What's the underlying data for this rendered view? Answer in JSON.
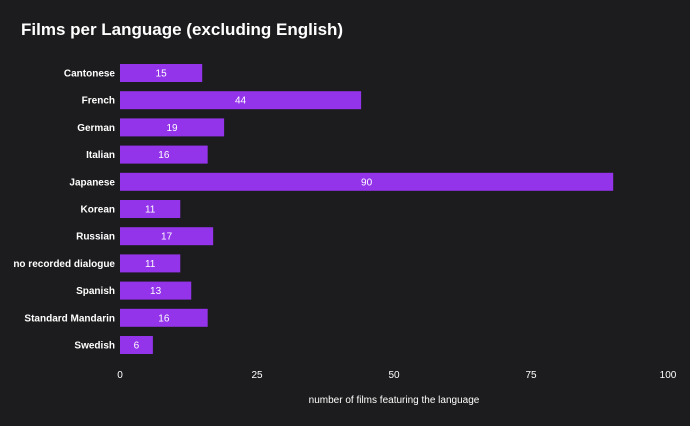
{
  "chart_data": {
    "type": "bar",
    "orientation": "horizontal",
    "title": "Films per Language (excluding English)",
    "xlabel": "number of films featuring the language",
    "ylabel": "",
    "categories": [
      "Cantonese",
      "French",
      "German",
      "Italian",
      "Japanese",
      "Korean",
      "Russian",
      "no recorded dialogue",
      "Spanish",
      "Standard Mandarin",
      "Swedish"
    ],
    "values": [
      15,
      44,
      19,
      16,
      90,
      11,
      17,
      11,
      13,
      16,
      6
    ],
    "xlim": [
      0,
      100
    ],
    "xticks": [
      0,
      25,
      50,
      75,
      100
    ],
    "grid": false,
    "data_labels": true,
    "colors": {
      "background": "#1c1b1d",
      "bar": "#9334ea",
      "text": "#ffffff"
    }
  }
}
